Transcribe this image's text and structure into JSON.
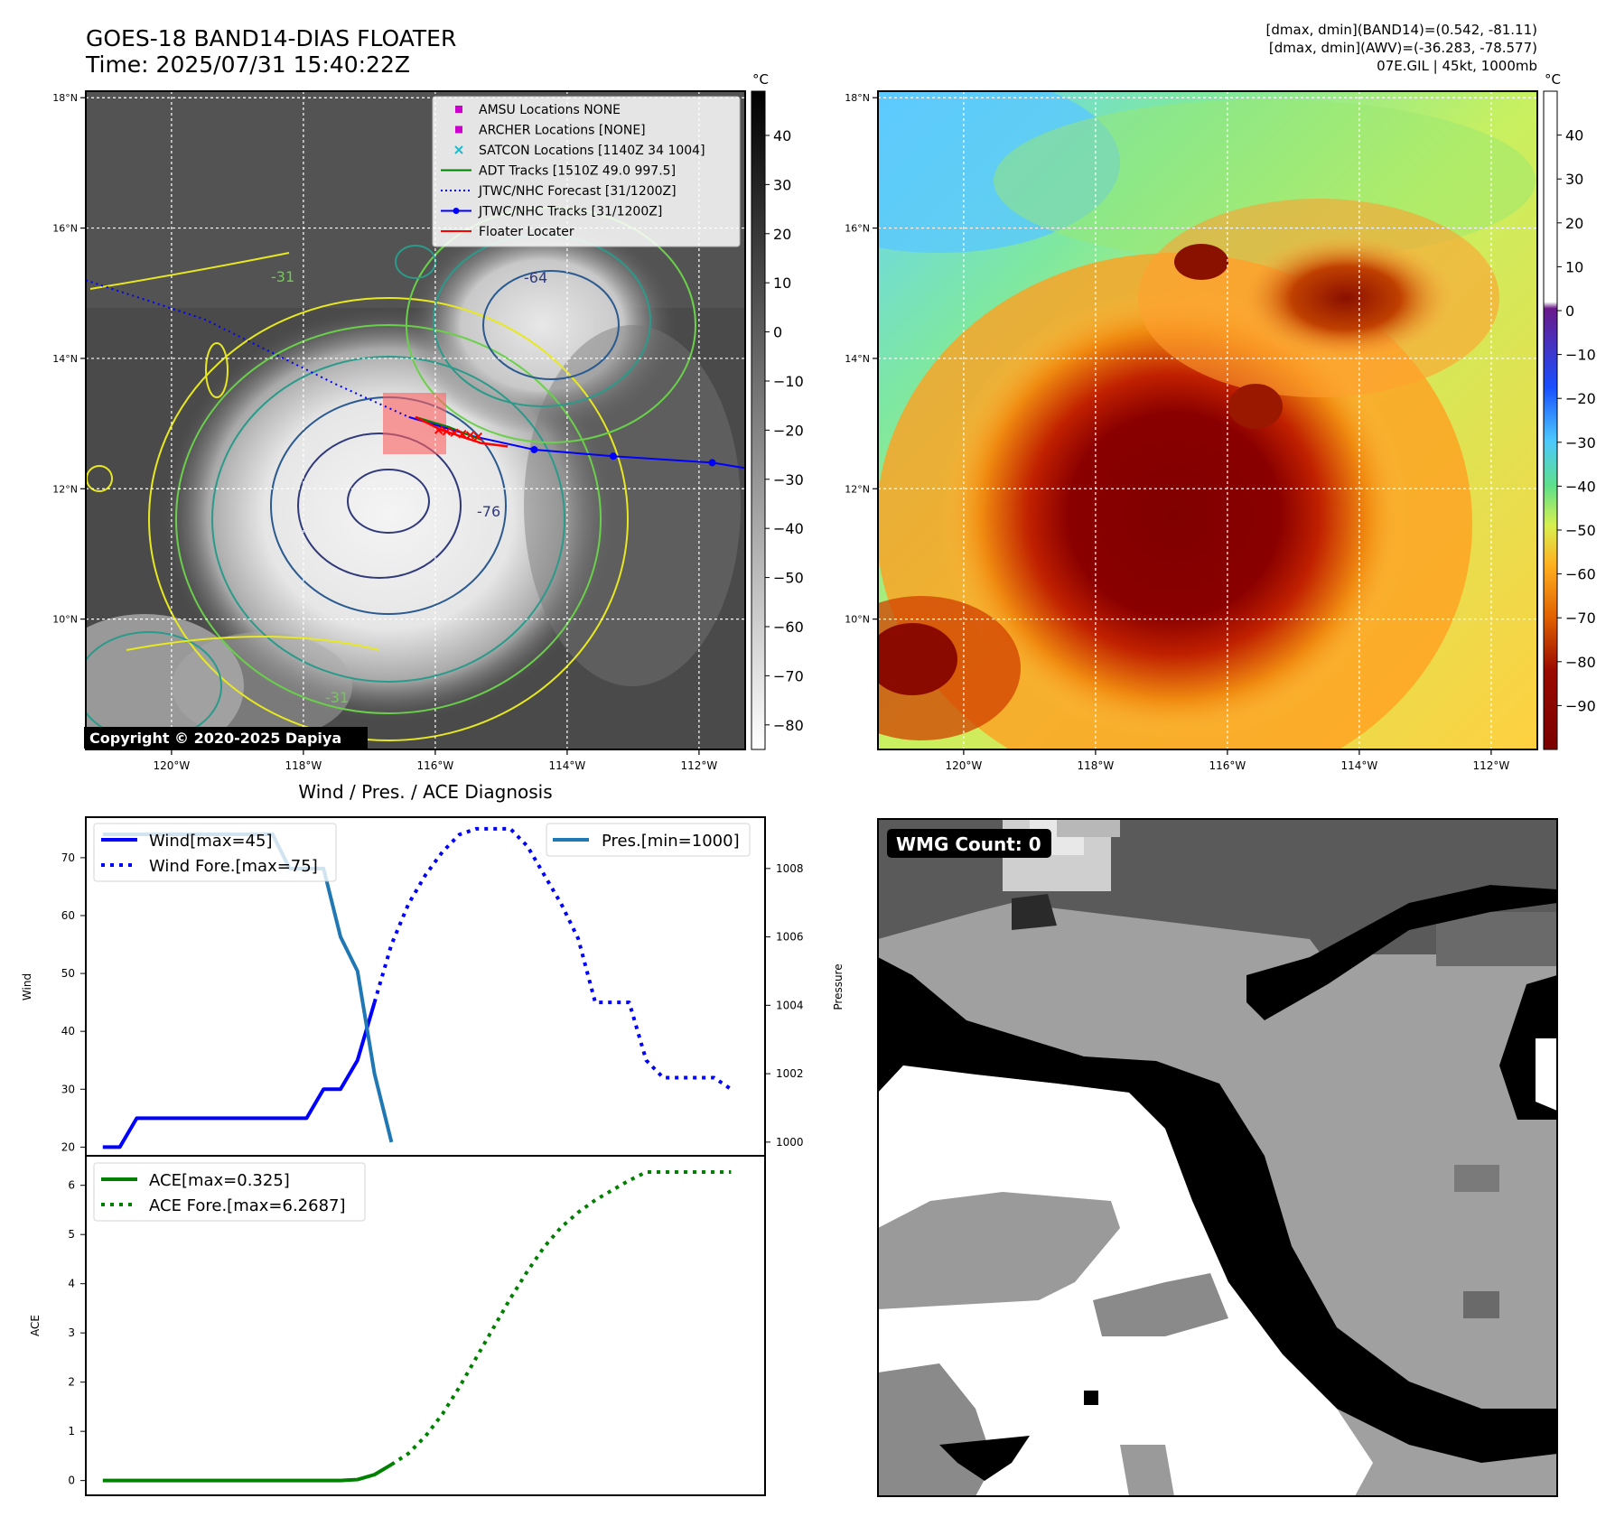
{
  "header": {
    "title": "GOES-18 BAND14-DIAS FLOATER",
    "time": "Time: 2025/07/31 15:40:22Z",
    "info": [
      "[dmax, dmin](BAND14)=(0.542, -81.11)",
      "[dmax, dmin](AWV)=(-36.283, -78.577)",
      "07E.GIL | 45kt, 1000mb"
    ]
  },
  "map": {
    "lat_labels": [
      "18°N",
      "16°N",
      "14°N",
      "12°N",
      "10°N"
    ],
    "lat_values": [
      18,
      16,
      14,
      12,
      10
    ],
    "lon_labels": [
      "120°W",
      "118°W",
      "116°W",
      "114°W",
      "112°W"
    ],
    "lon_values": [
      -120,
      -118,
      -116,
      -114,
      -112
    ],
    "lon_range": [
      -121.3,
      -111.3
    ],
    "lat_range": [
      8.0,
      18.1
    ],
    "copyright": "Copyright © 2020-2025 Dapiya",
    "contour_labels": [
      "-64",
      "-76",
      "-31",
      "-31"
    ],
    "legend": [
      {
        "label": "AMSU Locations NONE",
        "symbol": "square",
        "color": "#cc00cc"
      },
      {
        "label": "ARCHER Locations [NONE]",
        "symbol": "square",
        "color": "#cc00cc"
      },
      {
        "label": "SATCON Locations [1140Z 34 1004]",
        "symbol": "x",
        "color": "#17becf"
      },
      {
        "label": "ADT Tracks [1510Z 49.0 997.5]",
        "symbol": "line",
        "color": "#008000"
      },
      {
        "label": "JTWC/NHC Forecast [31/1200Z]",
        "symbol": "dotted",
        "color": "#0000ff"
      },
      {
        "label": "JTWC/NHC Tracks [31/1200Z]",
        "symbol": "line-dot",
        "color": "#0000ff"
      },
      {
        "label": "Floater Locater",
        "symbol": "line",
        "color": "#ff0000"
      }
    ],
    "track_points": [
      [
        -116.4,
        13.1
      ],
      [
        -115.4,
        12.8
      ],
      [
        -114.5,
        12.6
      ],
      [
        -113.3,
        12.5
      ],
      [
        -111.8,
        12.4
      ],
      [
        -111.2,
        12.3
      ]
    ],
    "forecast_track": [
      [
        -121.3,
        15.2
      ],
      [
        -119.5,
        14.6
      ],
      [
        -117.5,
        13.6
      ],
      [
        -116.4,
        13.1
      ]
    ],
    "adt_track": [
      [
        -116.3,
        13.1
      ],
      [
        -115.8,
        12.95
      ],
      [
        -115.3,
        12.75
      ]
    ],
    "floater_track": [
      [
        -116.3,
        13.1
      ],
      [
        -115.9,
        12.9
      ],
      [
        -115.3,
        12.7
      ],
      [
        -114.9,
        12.65
      ]
    ]
  },
  "colorbars": {
    "unit": "°C",
    "ir_ticks": [
      "40",
      "30",
      "20",
      "10",
      "0",
      "−10",
      "−20",
      "−30",
      "−40",
      "−50",
      "−60",
      "−70",
      "−80"
    ],
    "ir_values": [
      40,
      30,
      20,
      10,
      0,
      -10,
      -20,
      -30,
      -40,
      -50,
      -60,
      -70,
      -80
    ],
    "ir_range": [
      -85,
      49
    ],
    "wv_ticks": [
      "40",
      "30",
      "20",
      "10",
      "0",
      "−10",
      "−20",
      "−30",
      "−40",
      "−50",
      "−60",
      "−70",
      "−80",
      "−90"
    ],
    "wv_values": [
      40,
      30,
      20,
      10,
      0,
      -10,
      -20,
      -30,
      -40,
      -50,
      -60,
      -70,
      -80,
      -90
    ],
    "wv_range": [
      -100,
      50
    ]
  },
  "chart_data": [
    {
      "type": "line",
      "title": "Wind / Pres. / ACE Diagnosis",
      "ylabel": "Wind",
      "ylabel_right": "Pressure",
      "ylim": [
        18.5,
        77
      ],
      "ylim_right": [
        999.6,
        1009.5
      ],
      "yticks": [
        20,
        30,
        40,
        50,
        60,
        70
      ],
      "yticks_right": [
        1000,
        1002,
        1004,
        1006,
        1008
      ],
      "xlim": [
        0,
        40
      ],
      "series": [
        {
          "name": "Wind[max=45]",
          "style": "solid",
          "color": "#0000ff",
          "axis": "left",
          "x": [
            1,
            2,
            3,
            4,
            5,
            6,
            7,
            8,
            9,
            10,
            11,
            12,
            13,
            14,
            15,
            16,
            17
          ],
          "y": [
            20,
            20,
            25,
            25,
            25,
            25,
            25,
            25,
            25,
            25,
            25,
            25,
            25,
            30,
            30,
            35,
            45
          ]
        },
        {
          "name": "Wind Fore.[max=75]",
          "style": "dotted",
          "color": "#0000ff",
          "axis": "left",
          "x": [
            17,
            18,
            19,
            20,
            21,
            22,
            23,
            24,
            25,
            26,
            27,
            28,
            29,
            30,
            31,
            32,
            33,
            34,
            35,
            36,
            37,
            38
          ],
          "y": [
            45,
            55,
            62,
            67,
            71,
            74,
            75,
            75,
            75,
            72,
            67,
            62,
            56,
            45,
            45,
            45,
            35,
            32,
            32,
            32,
            32,
            30
          ]
        },
        {
          "name": "Pres.[min=1000]",
          "style": "solid",
          "color": "#1f77b4",
          "axis": "right",
          "x": [
            1,
            2,
            3,
            4,
            5,
            6,
            7,
            8,
            9,
            10,
            11,
            12,
            13,
            14,
            15,
            16,
            17,
            18
          ],
          "y": [
            1009,
            1009,
            1009,
            1009,
            1009,
            1009,
            1009,
            1009,
            1009,
            1009,
            1009,
            1008,
            1008,
            1008,
            1006,
            1005,
            1002,
            1000
          ]
        }
      ]
    },
    {
      "type": "line",
      "ylabel": "ACE",
      "ylim": [
        -0.3,
        6.6
      ],
      "yticks": [
        0,
        1,
        2,
        3,
        4,
        5,
        6
      ],
      "xlim": [
        0,
        40
      ],
      "series": [
        {
          "name": "ACE[max=0.325]",
          "style": "solid",
          "color": "#008000",
          "x": [
            1,
            5,
            10,
            15,
            16,
            17,
            18
          ],
          "y": [
            0,
            0,
            0,
            0,
            0.02,
            0.12,
            0.325
          ]
        },
        {
          "name": "ACE Fore.[max=6.2687]",
          "style": "dotted",
          "color": "#008000",
          "x": [
            18,
            19,
            20,
            21,
            22,
            23,
            24,
            25,
            26,
            27,
            28,
            29,
            30,
            31,
            32,
            33,
            34,
            35,
            36,
            37,
            38
          ],
          "y": [
            0.325,
            0.55,
            0.9,
            1.35,
            1.9,
            2.5,
            3.1,
            3.7,
            4.25,
            4.75,
            5.15,
            5.45,
            5.7,
            5.9,
            6.1,
            6.2687,
            6.2687,
            6.2687,
            6.2687,
            6.2687,
            6.2687
          ]
        }
      ]
    }
  ],
  "wmg": {
    "label": "WMG Count: 0"
  }
}
